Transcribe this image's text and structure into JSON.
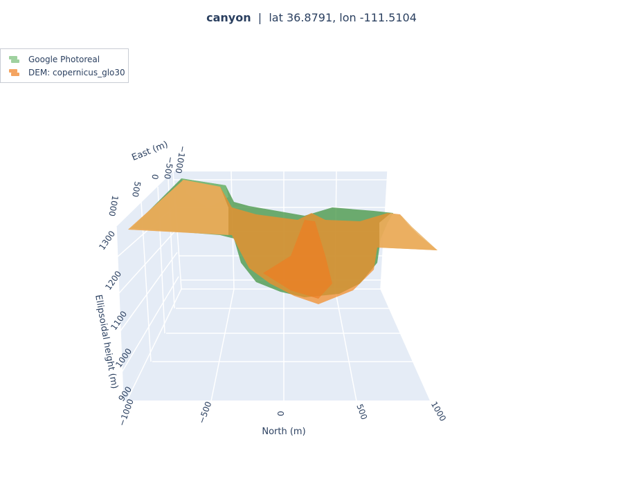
{
  "title": {
    "site": "canyon",
    "separator": "|",
    "coords": "lat 36.8791,  lon -111.5104"
  },
  "legend": {
    "items": [
      {
        "label": "Google Photoreal",
        "color": "#7fbf7f"
      },
      {
        "label": "DEM: copernicus_glo30",
        "color": "#f4a460"
      }
    ]
  },
  "chart_data": {
    "type": "surface",
    "title": "canyon  |  lat 36.8791,  lon -111.5104",
    "axes": {
      "x": {
        "label": "North (m)",
        "ticks": [
          "−1000",
          "−500",
          "0",
          "500",
          "1000"
        ],
        "range": [
          -1000,
          1000
        ]
      },
      "y": {
        "label": "East (m)",
        "ticks": [
          "−1000",
          "−500",
          "0",
          "500",
          "1000"
        ],
        "range": [
          -1000,
          1000
        ]
      },
      "z": {
        "label": "Ellipsoidal height (m)",
        "ticks": [
          "900",
          "1000",
          "1100",
          "1200",
          "1300"
        ],
        "range": [
          900,
          1300
        ]
      }
    },
    "series": [
      {
        "name": "Google Photoreal",
        "color": "#4c9a4c",
        "profile_x": [
          -1000,
          -800,
          -600,
          -400,
          -300,
          -200,
          -100,
          0,
          100,
          200,
          300,
          400,
          500,
          600,
          800,
          1000
        ],
        "profile_z": [
          1290,
          1330,
          1335,
          1315,
          1160,
          1110,
          1090,
          1080,
          1080,
          1090,
          1140,
          1280,
          1300,
          1300,
          1250,
          1200
        ]
      },
      {
        "name": "DEM: copernicus_glo30",
        "color": "#f28e2b",
        "profile_x": [
          -1000,
          -800,
          -600,
          -400,
          -300,
          -200,
          -100,
          0,
          100,
          200,
          300,
          400,
          500,
          600,
          800,
          1000
        ],
        "profile_z": [
          1290,
          1340,
          1345,
          1310,
          1200,
          1140,
          1110,
          1090,
          1085,
          1110,
          1180,
          1290,
          1305,
          1310,
          1260,
          1210
        ]
      }
    ]
  }
}
